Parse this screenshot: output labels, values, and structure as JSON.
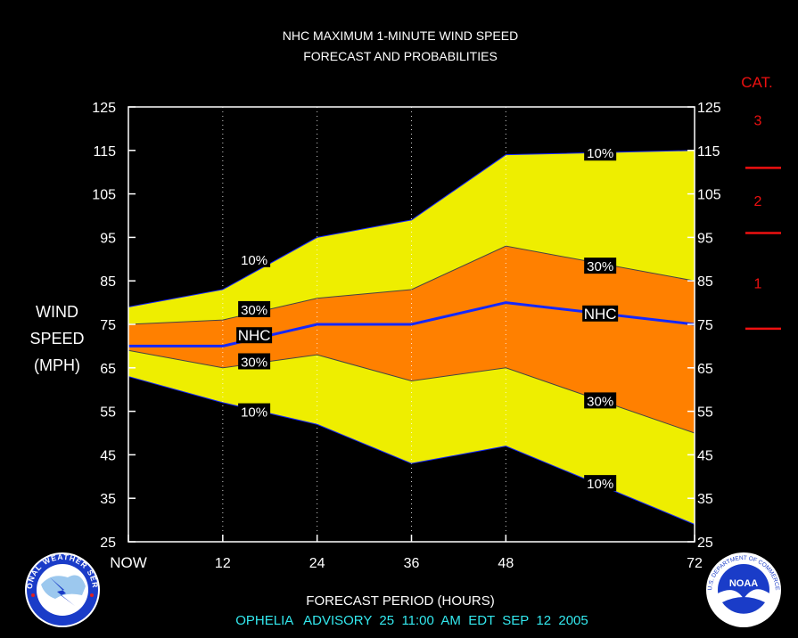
{
  "chart_data": {
    "type": "area",
    "title": "NHC MAXIMUM 1-MINUTE WIND SPEED",
    "subtitle": "FORECAST AND PROBABILITIES",
    "ylabel": [
      "WIND",
      "SPEED",
      "(MPH)"
    ],
    "xlabel": "FORECAST PERIOD (HOURS)",
    "footer": "OPHELIA   ADVISORY  25  11:00  AM  EDT  SEP  12  2005",
    "ylim": [
      25,
      125
    ],
    "yticks": [
      25,
      35,
      45,
      55,
      65,
      75,
      85,
      95,
      105,
      115,
      125
    ],
    "xlim": [
      0,
      72
    ],
    "xticks": [
      {
        "value": 0,
        "label": "NOW"
      },
      {
        "value": 12,
        "label": "12"
      },
      {
        "value": 24,
        "label": "24"
      },
      {
        "value": 36,
        "label": "36"
      },
      {
        "value": 48,
        "label": "48"
      },
      {
        "value": 72,
        "label": "72"
      }
    ],
    "x": [
      0,
      12,
      24,
      36,
      48,
      72
    ],
    "series": [
      {
        "id": "upper_10",
        "label": "10%",
        "values": [
          79,
          83,
          95,
          99,
          114,
          115
        ]
      },
      {
        "id": "upper_30",
        "label": "30%",
        "values": [
          75,
          76,
          81,
          83,
          93,
          85
        ]
      },
      {
        "id": "nhc",
        "label": "NHC",
        "values": [
          70,
          70,
          75,
          75,
          80,
          75
        ]
      },
      {
        "id": "lower_30",
        "label": "30%",
        "values": [
          69,
          65,
          68,
          62,
          65,
          50
        ]
      },
      {
        "id": "lower_10",
        "label": "10%",
        "values": [
          63,
          57,
          52,
          43,
          47,
          29
        ]
      }
    ],
    "series_labels": [
      {
        "series": "upper_10",
        "text": "10%",
        "x": 16,
        "y": 90
      },
      {
        "series": "upper_30",
        "text": "30%",
        "x": 16,
        "y": 78.5
      },
      {
        "series": "nhc",
        "text": "NHC",
        "x": 16,
        "y": 72.5
      },
      {
        "series": "lower_30",
        "text": "30%",
        "x": 16,
        "y": 66.5
      },
      {
        "series": "lower_10",
        "text": "10%",
        "x": 16,
        "y": 55
      },
      {
        "series": "upper_10",
        "text": "10%",
        "x": 60,
        "y": 114.5
      },
      {
        "series": "upper_30",
        "text": "30%",
        "x": 60,
        "y": 88.5
      },
      {
        "series": "nhc",
        "text": "NHC",
        "x": 60,
        "y": 77.5
      },
      {
        "series": "lower_30",
        "text": "30%",
        "x": 60,
        "y": 57.5
      },
      {
        "series": "lower_10",
        "text": "10%",
        "x": 60,
        "y": 38.5
      }
    ],
    "category_scale": {
      "title": "CAT.",
      "thresholds": [
        74,
        96,
        111
      ],
      "labels": [
        {
          "text": "1",
          "y": 84.5
        },
        {
          "text": "2",
          "y": 103.5
        },
        {
          "text": "3",
          "y": 122
        }
      ]
    },
    "colors": {
      "band_10": "#eeee00",
      "band_30": "#ff8000",
      "nhc_line": "#1428ff",
      "category": "#ee1010",
      "footer": "#33e8ee"
    }
  },
  "logos": {
    "left": {
      "name": "nws-logo",
      "text": "NATIONAL WEATHER SERVICE"
    },
    "right": {
      "name": "noaa-logo",
      "text": "NOAA",
      "ring_text": "U.S. DEPARTMENT OF COMMERCE"
    }
  }
}
